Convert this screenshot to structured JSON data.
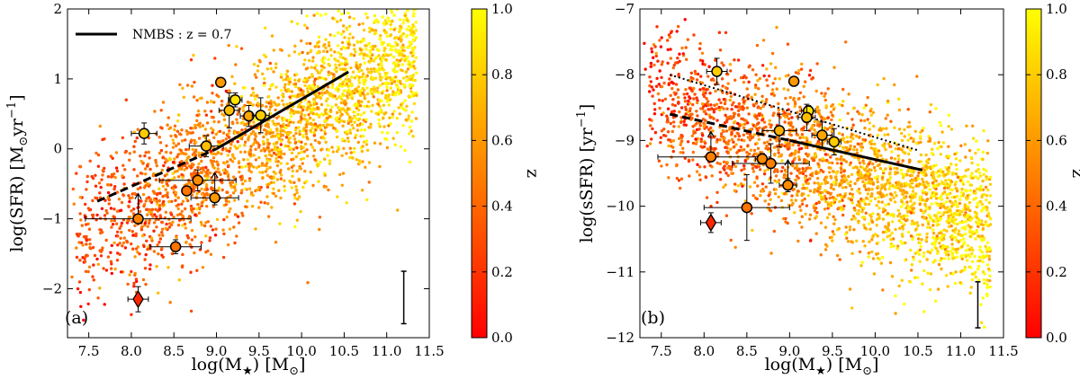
{
  "colormap": {
    "low": "#ff0000",
    "mid": "#ff8000",
    "high": "#ffff00"
  },
  "chart_data": [
    {
      "type": "scatter",
      "panel_label": "(a)",
      "xlabel_main": "log(M",
      "xlabel_sub": "★",
      "xlabel_tail": ") [M",
      "xlabel_sub2": "⊙",
      "xlabel_end": "]",
      "ylabel_main": "log(SFR)  [M",
      "ylabel_sub": "⊙",
      "ylabel_mid": "yr",
      "ylabel_sup": "−1",
      "ylabel_end": "]",
      "xlim": [
        7.25,
        11.5
      ],
      "ylim": [
        -2.7,
        2.0
      ],
      "xticks": [
        7.5,
        8.0,
        8.5,
        9.0,
        9.5,
        10.0,
        10.5,
        11.0,
        11.5
      ],
      "xtick_labels": [
        "7.5",
        "8.0",
        "8.5",
        "9.0",
        "9.5",
        "10.0",
        "10.5",
        "11.0",
        "11.5"
      ],
      "yticks": [
        -2,
        -1,
        0,
        1,
        2
      ],
      "ytick_labels": [
        "−2",
        "−1",
        "0",
        "1",
        "2"
      ],
      "legend": {
        "label": "NMBS : z = 0.7",
        "placement": "top-left"
      },
      "relation": {
        "solid_x": [
          9.0,
          10.55
        ],
        "solid_y": [
          0.0,
          1.1
        ],
        "dashed_x": [
          7.6,
          9.0
        ],
        "dashed_y": [
          -0.75,
          0.0
        ]
      },
      "scatter_cloud": {
        "n_points": 2600,
        "center_x": 9.35,
        "slope": 0.58,
        "intercept": 0.05,
        "scatter": 0.55,
        "z_range": [
          0.0,
          1.0
        ]
      },
      "galaxies": [
        {
          "x": 8.15,
          "y": 0.22,
          "z": 0.8,
          "xerr": 0.15,
          "yerr": 0.15,
          "lower_limit": false
        },
        {
          "x": 9.05,
          "y": 0.95,
          "z": 0.6,
          "xerr": 0.05,
          "yerr": 0.06,
          "lower_limit": false
        },
        {
          "x": 9.22,
          "y": 0.7,
          "z": 0.9,
          "xerr": 0.08,
          "yerr": 0.1,
          "lower_limit": false
        },
        {
          "x": 9.15,
          "y": 0.55,
          "z": 0.75,
          "xerr": 0.12,
          "yerr": 0.25,
          "lower_limit": false
        },
        {
          "x": 9.38,
          "y": 0.47,
          "z": 0.65,
          "xerr": 0.1,
          "yerr": 0.15,
          "lower_limit": false
        },
        {
          "x": 9.52,
          "y": 0.48,
          "z": 0.8,
          "xerr": 0.1,
          "yerr": 0.25,
          "lower_limit": false
        },
        {
          "x": 8.88,
          "y": 0.04,
          "z": 0.75,
          "xerr": 0.2,
          "yerr": 0.15,
          "lower_limit": false
        },
        {
          "x": 8.78,
          "y": -0.45,
          "z": 0.55,
          "xerr": 0.45,
          "yerr": 0.15,
          "lower_limit": false
        },
        {
          "x": 8.65,
          "y": -0.6,
          "z": 0.45,
          "xerr": 0.05,
          "yerr": 0.06,
          "lower_limit": false
        },
        {
          "x": 8.98,
          "y": -0.7,
          "z": 0.6,
          "xerr": 0.28,
          "yerr": 0.1,
          "lower_limit": true
        },
        {
          "x": 8.08,
          "y": -1.0,
          "z": 0.5,
          "xerr": 0.62,
          "yerr": 0.0,
          "lower_limit": true
        },
        {
          "x": 8.52,
          "y": -1.4,
          "z": 0.45,
          "xerr": 0.3,
          "yerr": 0.1,
          "lower_limit": false
        }
      ],
      "diamond": {
        "x": 8.08,
        "y": -2.15,
        "z": 0.15,
        "xerr": 0.12,
        "yerr": 0.18
      },
      "typical_error": {
        "x": 11.2,
        "y_low": -2.5,
        "y_high": -1.75
      }
    },
    {
      "type": "scatter",
      "panel_label": "(b)",
      "xlabel_main": "log(M",
      "xlabel_sub": "★",
      "xlabel_tail": ") [M",
      "xlabel_sub2": "⊙",
      "xlabel_end": "]",
      "ylabel_main": "log(sSFR)  [yr",
      "ylabel_sup": "−1",
      "ylabel_end": "]",
      "xlim": [
        7.25,
        11.5
      ],
      "ylim": [
        -12.0,
        -7.0
      ],
      "xticks": [
        7.5,
        8.0,
        8.5,
        9.0,
        9.5,
        10.0,
        10.5,
        11.0,
        11.5
      ],
      "xtick_labels": [
        "7.5",
        "8.0",
        "8.5",
        "9.0",
        "9.5",
        "10.0",
        "10.5",
        "11.0",
        "11.5"
      ],
      "yticks": [
        -12,
        -11,
        -10,
        -9,
        -8,
        -7
      ],
      "ytick_labels": [
        "−12",
        "−11",
        "−10",
        "−9",
        "−8",
        "−7"
      ],
      "relation": {
        "solid_x": [
          9.0,
          10.55
        ],
        "solid_y": [
          -9.0,
          -9.45
        ],
        "dashed_x": [
          7.6,
          9.0
        ],
        "dashed_y": [
          -8.6,
          -9.0
        ],
        "dotted_x": [
          7.6,
          10.5
        ],
        "dotted_y": [
          -8.0,
          -9.15
        ]
      },
      "scatter_cloud": {
        "n_points": 2600,
        "center_x": 9.35,
        "slope": -0.42,
        "intercept": -9.3,
        "scatter": 0.55,
        "z_range": [
          0.0,
          1.0
        ]
      },
      "galaxies": [
        {
          "x": 8.15,
          "y": -7.95,
          "z": 0.8,
          "xerr": 0.12,
          "yerr": 0.2,
          "lower_limit": false
        },
        {
          "x": 9.05,
          "y": -8.1,
          "z": 0.6,
          "xerr": 0.05,
          "yerr": 0.05,
          "lower_limit": false
        },
        {
          "x": 9.22,
          "y": -8.55,
          "z": 0.9,
          "xerr": 0.08,
          "yerr": 0.08,
          "lower_limit": false
        },
        {
          "x": 9.2,
          "y": -8.65,
          "z": 0.75,
          "xerr": 0.1,
          "yerr": 0.2,
          "lower_limit": false
        },
        {
          "x": 8.88,
          "y": -8.85,
          "z": 0.7,
          "xerr": 0.2,
          "yerr": 0.25,
          "lower_limit": false
        },
        {
          "x": 9.38,
          "y": -8.92,
          "z": 0.65,
          "xerr": 0.12,
          "yerr": 0.2,
          "lower_limit": false
        },
        {
          "x": 9.52,
          "y": -9.02,
          "z": 0.8,
          "xerr": 0.08,
          "yerr": 0.2,
          "lower_limit": false
        },
        {
          "x": 8.08,
          "y": -9.25,
          "z": 0.5,
          "xerr": 0.62,
          "yerr": 0.0,
          "lower_limit": true
        },
        {
          "x": 8.68,
          "y": -9.28,
          "z": 0.55,
          "xerr": 0.08,
          "yerr": 0.08,
          "lower_limit": false
        },
        {
          "x": 8.78,
          "y": -9.35,
          "z": 0.5,
          "xerr": 0.45,
          "yerr": 0.3,
          "lower_limit": false
        },
        {
          "x": 8.98,
          "y": -9.68,
          "z": 0.55,
          "xerr": 0.1,
          "yerr": 0.1,
          "lower_limit": true
        },
        {
          "x": 8.5,
          "y": -10.02,
          "z": 0.45,
          "xerr": 0.5,
          "yerr": 0.5,
          "lower_limit": false
        }
      ],
      "diamond": {
        "x": 8.08,
        "y": -10.25,
        "z": 0.15,
        "xerr": 0.12,
        "yerr": 0.15
      },
      "typical_error": {
        "x": 11.2,
        "y_low": -11.85,
        "y_high": -11.15
      }
    }
  ],
  "colorbar": {
    "label": "z",
    "ticks": [
      0.0,
      0.2,
      0.4,
      0.6,
      0.8,
      1.0
    ],
    "tick_labels": [
      "0.0",
      "0.2",
      "0.4",
      "0.6",
      "0.8",
      "1.0"
    ]
  }
}
